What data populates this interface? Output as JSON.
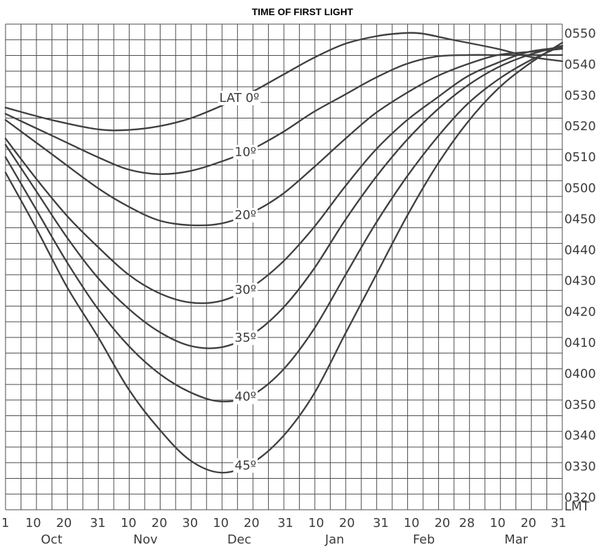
{
  "chart_data": {
    "type": "line",
    "title": "TIME OF FIRST LIGHT",
    "y_unit_label": "LMT",
    "y_tick_labels": [
      "0320",
      "0330",
      "0340",
      "0350",
      "0400",
      "0410",
      "0420",
      "0430",
      "0440",
      "0450",
      "0500",
      "0510",
      "0520",
      "0530",
      "0540",
      "0550"
    ],
    "y_tick_minutes": [
      200,
      210,
      220,
      230,
      240,
      250,
      260,
      270,
      280,
      290,
      300,
      310,
      320,
      330,
      340,
      350
    ],
    "x_tick_labels": [
      "1",
      "10",
      "20",
      "31",
      "10",
      "20",
      "30",
      "10",
      "20",
      "31",
      "10",
      "20",
      "31",
      "10",
      "20",
      "28",
      "10",
      "20",
      "31"
    ],
    "x_tick_days": [
      0,
      9,
      19,
      30,
      40,
      50,
      60,
      70,
      80,
      91,
      101,
      111,
      122,
      132,
      142,
      150,
      160,
      170,
      181
    ],
    "months": [
      {
        "label": "Oct",
        "center_day": 15
      },
      {
        "label": "Nov",
        "center_day": 45.5
      },
      {
        "label": "Dec",
        "center_day": 76
      },
      {
        "label": "Jan",
        "center_day": 107
      },
      {
        "label": "Feb",
        "center_day": 136
      },
      {
        "label": "Mar",
        "center_day": 166
      }
    ],
    "x_range_days": [
      0,
      181
    ],
    "y_range_minutes": [
      196,
      353
    ],
    "series": [
      {
        "name": "LAT 0º",
        "label_text": "LAT 0º",
        "label_day": 76,
        "points": [
          [
            0,
            326
          ],
          [
            15,
            322
          ],
          [
            30,
            319
          ],
          [
            40,
            318.8
          ],
          [
            50,
            320
          ],
          [
            60,
            322.5
          ],
          [
            70,
            326.5
          ],
          [
            80,
            331
          ],
          [
            90,
            336.5
          ],
          [
            100,
            342
          ],
          [
            110,
            346.5
          ],
          [
            120,
            349
          ],
          [
            128,
            350
          ],
          [
            135,
            350
          ],
          [
            145,
            348
          ],
          [
            160,
            345
          ],
          [
            170,
            342.5
          ],
          [
            181,
            341
          ]
        ]
      },
      {
        "name": "10º",
        "label_text": "10º",
        "label_day": 78,
        "points": [
          [
            0,
            324
          ],
          [
            15,
            317
          ],
          [
            30,
            310
          ],
          [
            40,
            306
          ],
          [
            50,
            304.5
          ],
          [
            60,
            305.5
          ],
          [
            70,
            308.5
          ],
          [
            80,
            312.5
          ],
          [
            90,
            318
          ],
          [
            100,
            324.5
          ],
          [
            110,
            330
          ],
          [
            120,
            335.5
          ],
          [
            130,
            340
          ],
          [
            140,
            342.5
          ],
          [
            150,
            343
          ],
          [
            160,
            343
          ],
          [
            170,
            343
          ],
          [
            181,
            343
          ]
        ]
      },
      {
        "name": "20º",
        "label_text": "20º",
        "label_day": 78,
        "points": [
          [
            0,
            322
          ],
          [
            15,
            311
          ],
          [
            30,
            300
          ],
          [
            40,
            294
          ],
          [
            50,
            289.5
          ],
          [
            60,
            288
          ],
          [
            70,
            288.5
          ],
          [
            80,
            292
          ],
          [
            90,
            298
          ],
          [
            100,
            306.5
          ],
          [
            110,
            315.5
          ],
          [
            120,
            324
          ],
          [
            130,
            330.5
          ],
          [
            140,
            336
          ],
          [
            150,
            340
          ],
          [
            160,
            343
          ],
          [
            170,
            344
          ],
          [
            181,
            345
          ]
        ]
      },
      {
        "name": "30º",
        "label_text": "30º",
        "label_day": 78,
        "points": [
          [
            0,
            316
          ],
          [
            10,
            303
          ],
          [
            20,
            291
          ],
          [
            30,
            281
          ],
          [
            40,
            272
          ],
          [
            50,
            266
          ],
          [
            60,
            263
          ],
          [
            70,
            263.5
          ],
          [
            80,
            268
          ],
          [
            90,
            276
          ],
          [
            100,
            287
          ],
          [
            110,
            300
          ],
          [
            120,
            312
          ],
          [
            130,
            321.5
          ],
          [
            140,
            329
          ],
          [
            150,
            336
          ],
          [
            160,
            340.5
          ],
          [
            170,
            344
          ],
          [
            181,
            345.5
          ]
        ]
      },
      {
        "name": "35º",
        "label_text": "35º",
        "label_day": 78,
        "points": [
          [
            0,
            314
          ],
          [
            10,
            299
          ],
          [
            20,
            284
          ],
          [
            30,
            271
          ],
          [
            40,
            261
          ],
          [
            50,
            253.5
          ],
          [
            60,
            249
          ],
          [
            70,
            248.5
          ],
          [
            80,
            252.5
          ],
          [
            90,
            261
          ],
          [
            100,
            273.5
          ],
          [
            110,
            289
          ],
          [
            120,
            303
          ],
          [
            130,
            315
          ],
          [
            140,
            325
          ],
          [
            150,
            333
          ],
          [
            160,
            339
          ],
          [
            170,
            343
          ],
          [
            181,
            346
          ]
        ]
      },
      {
        "name": "40º",
        "label_text": "40º",
        "label_day": 78,
        "points": [
          [
            0,
            310
          ],
          [
            10,
            293
          ],
          [
            20,
            276
          ],
          [
            30,
            261
          ],
          [
            40,
            249
          ],
          [
            50,
            240
          ],
          [
            60,
            234
          ],
          [
            70,
            231
          ],
          [
            80,
            233
          ],
          [
            90,
            241
          ],
          [
            100,
            254
          ],
          [
            110,
            271
          ],
          [
            120,
            288
          ],
          [
            130,
            303
          ],
          [
            140,
            316
          ],
          [
            150,
            327
          ],
          [
            160,
            335
          ],
          [
            170,
            341
          ],
          [
            181,
            346
          ]
        ]
      },
      {
        "name": "45º",
        "label_text": "45º",
        "label_day": 78,
        "points": [
          [
            0,
            305
          ],
          [
            10,
            287
          ],
          [
            20,
            268
          ],
          [
            30,
            252
          ],
          [
            40,
            235
          ],
          [
            50,
            222
          ],
          [
            60,
            212
          ],
          [
            70,
            208
          ],
          [
            80,
            211
          ],
          [
            90,
            219.5
          ],
          [
            100,
            233
          ],
          [
            110,
            252
          ],
          [
            120,
            271
          ],
          [
            130,
            290
          ],
          [
            140,
            307
          ],
          [
            150,
            321
          ],
          [
            160,
            332
          ],
          [
            170,
            340
          ],
          [
            181,
            347
          ]
        ]
      }
    ]
  }
}
